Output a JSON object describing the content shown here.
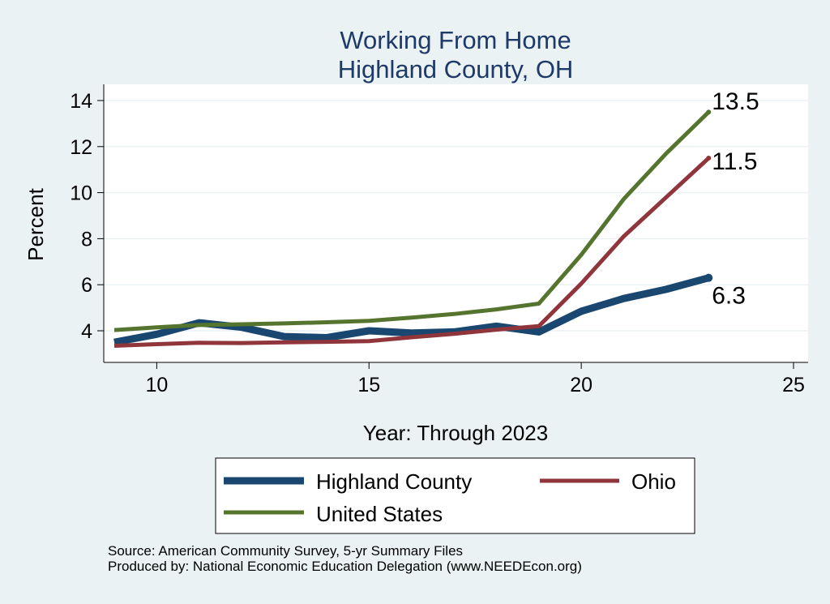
{
  "chart_data": {
    "type": "line",
    "title": [
      "Working From Home",
      "Highland County, OH"
    ],
    "xlabel": "Year: Through 2023",
    "ylabel": "Percent",
    "xlim": [
      9,
      25
    ],
    "ylim": [
      2.6,
      14.8
    ],
    "xticks": [
      10,
      15,
      20,
      25
    ],
    "yticks": [
      4,
      6,
      8,
      10,
      12,
      14
    ],
    "grid": true,
    "legend_position": "bottom",
    "series": [
      {
        "name": "Highland County",
        "color": "#1a476f",
        "x": [
          9,
          10,
          11,
          12,
          13,
          14,
          15,
          16,
          17,
          18,
          19,
          20,
          21,
          22,
          23
        ],
        "y": [
          3.5,
          3.85,
          4.35,
          4.15,
          3.75,
          3.7,
          4.0,
          3.9,
          3.95,
          4.2,
          3.95,
          4.85,
          5.4,
          5.8,
          6.3
        ],
        "end_label": "6.3"
      },
      {
        "name": "Ohio",
        "color": "#90353b",
        "x": [
          9,
          10,
          11,
          12,
          13,
          14,
          15,
          16,
          17,
          18,
          19,
          20,
          21,
          22,
          23
        ],
        "y": [
          3.35,
          3.42,
          3.48,
          3.47,
          3.5,
          3.52,
          3.55,
          3.72,
          3.87,
          4.05,
          4.2,
          6.05,
          8.1,
          9.8,
          11.5
        ],
        "end_label": "11.5"
      },
      {
        "name": "United States",
        "color": "#55752f",
        "x": [
          9,
          10,
          11,
          12,
          13,
          14,
          15,
          16,
          17,
          18,
          19,
          20,
          21,
          22,
          23
        ],
        "y": [
          4.03,
          4.15,
          4.25,
          4.28,
          4.32,
          4.37,
          4.43,
          4.57,
          4.73,
          4.93,
          5.18,
          7.3,
          9.72,
          11.7,
          13.5
        ],
        "end_label": "13.5"
      }
    ]
  },
  "footer": {
    "source": "Source: American Community Survey, 5-yr Summary Files",
    "produced_by": "Produced by: National Economic Education Delegation (www.NEEDEcon.org)"
  }
}
